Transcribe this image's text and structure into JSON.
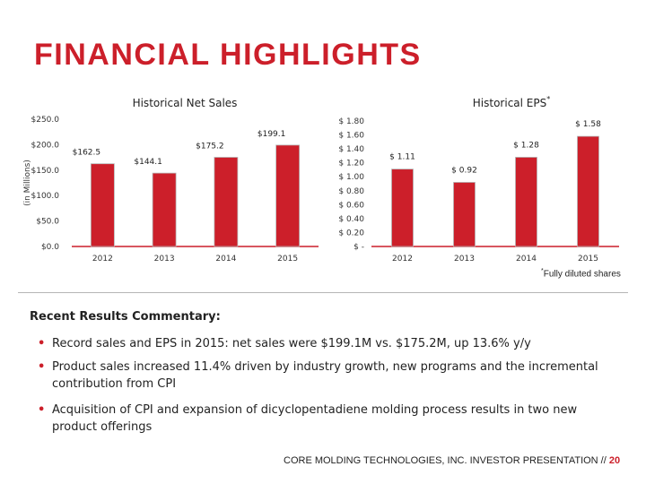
{
  "page": {
    "title": "FINANCIAL HIGHLIGHTS",
    "footer_text": "CORE MOLDING TECHNOLOGIES, INC. INVESTOR PRESENTATION // ",
    "footer_page": "20",
    "footnote_marker": "*",
    "footnote_text": "Fully diluted shares"
  },
  "commentary": {
    "title": "Recent Results Commentary:",
    "bullets": [
      "Record sales and EPS in 2015: net sales were $199.1M vs. $175.2M, up 13.6% y/y",
      "Product sales increased 11.4% driven by industry growth, new programs and the incremental contribution from CPI",
      "Acquisition of CPI and expansion of dicyclopentadiene molding process results in two new product offerings"
    ]
  },
  "colors": {
    "bar": "#cc1f2a",
    "axis": "#cc1f2a",
    "title": "#cc1f2a"
  },
  "chart_data": [
    {
      "type": "bar",
      "title": "Historical Net Sales",
      "ylabel": "(in Millions)",
      "categories": [
        "2012",
        "2013",
        "2014",
        "2015"
      ],
      "values": [
        162.5,
        144.1,
        175.2,
        199.1
      ],
      "value_labels": [
        "$162.5",
        "$144.1",
        "$175.2",
        "$199.1"
      ],
      "ylim": [
        0,
        250
      ],
      "yticks": [
        0,
        50,
        100,
        150,
        200,
        250
      ],
      "ytick_labels": [
        "$0.0",
        "$50.0",
        "$100.0",
        "$150.0",
        "$200.0",
        "$250.0"
      ],
      "grid": false
    },
    {
      "type": "bar",
      "title": "Historical EPS",
      "title_marker": "*",
      "categories": [
        "2012",
        "2013",
        "2014",
        "2015"
      ],
      "values": [
        1.11,
        0.92,
        1.28,
        1.58
      ],
      "value_labels": [
        "$ 1.11",
        "$ 0.92",
        "$ 1.28",
        "$ 1.58"
      ],
      "ylim": [
        0,
        1.8
      ],
      "yticks": [
        0,
        0.2,
        0.4,
        0.6,
        0.8,
        1.0,
        1.2,
        1.4,
        1.6,
        1.8
      ],
      "ytick_labels": [
        "$ -",
        "$ 0.20",
        "$ 0.40",
        "$ 0.60",
        "$ 0.80",
        "$ 1.00",
        "$ 1.20",
        "$ 1.40",
        "$ 1.60",
        "$ 1.80"
      ],
      "grid": false
    }
  ]
}
